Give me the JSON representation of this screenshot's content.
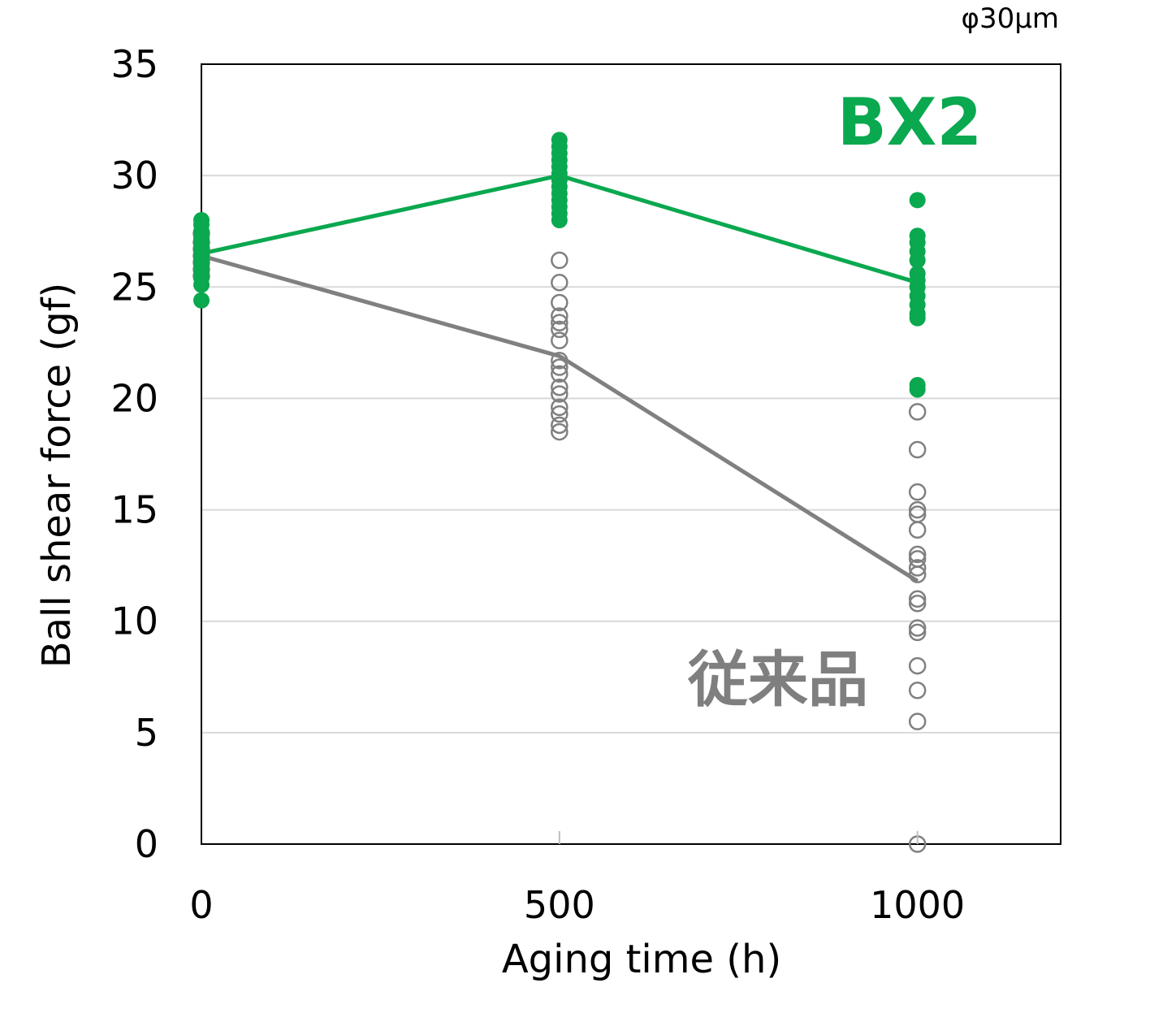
{
  "chart_data": {
    "type": "scatter",
    "note": "φ30μm",
    "xlabel": "Aging time (h)",
    "ylabel": "Ball shear force (gf)",
    "xlim": [
      0,
      1200
    ],
    "ylim": [
      0,
      35
    ],
    "x_ticks": [
      0,
      500,
      1000
    ],
    "y_ticks": [
      0,
      5,
      10,
      15,
      20,
      25,
      30,
      35
    ],
    "grid": "horizontal",
    "series": [
      {
        "name": "BX2",
        "color": "#0aa84f",
        "marker": "filled-circle",
        "mean": [
          [
            0,
            26.5
          ],
          [
            500,
            30.0
          ],
          [
            1000,
            25.2
          ]
        ],
        "points": [
          [
            0,
            28.0
          ],
          [
            0,
            27.8
          ],
          [
            0,
            27.5
          ],
          [
            0,
            27.2
          ],
          [
            0,
            27.0
          ],
          [
            0,
            26.8
          ],
          [
            0,
            26.6
          ],
          [
            0,
            26.4
          ],
          [
            0,
            26.2
          ],
          [
            0,
            26.0
          ],
          [
            0,
            25.7
          ],
          [
            0,
            25.4
          ],
          [
            0,
            25.1
          ],
          [
            0,
            24.4
          ],
          [
            500,
            31.6
          ],
          [
            500,
            31.3
          ],
          [
            500,
            31.0
          ],
          [
            500,
            30.7
          ],
          [
            500,
            30.4
          ],
          [
            500,
            30.1
          ],
          [
            500,
            29.8
          ],
          [
            500,
            29.5
          ],
          [
            500,
            29.2
          ],
          [
            500,
            28.9
          ],
          [
            500,
            28.6
          ],
          [
            500,
            28.3
          ],
          [
            500,
            28.0
          ],
          [
            1000,
            28.9
          ],
          [
            1000,
            27.3
          ],
          [
            1000,
            27.0
          ],
          [
            1000,
            26.6
          ],
          [
            1000,
            26.2
          ],
          [
            1000,
            25.6
          ],
          [
            1000,
            25.3
          ],
          [
            1000,
            25.0
          ],
          [
            1000,
            24.6
          ],
          [
            1000,
            24.2
          ],
          [
            1000,
            23.8
          ],
          [
            1000,
            23.6
          ],
          [
            1000,
            20.6
          ],
          [
            1000,
            20.4
          ]
        ]
      },
      {
        "name": "従来品",
        "color": "#808080",
        "marker": "open-circle",
        "mean": [
          [
            0,
            26.4
          ],
          [
            500,
            21.9
          ],
          [
            1000,
            11.8
          ]
        ],
        "points": [
          [
            0,
            27.4
          ],
          [
            0,
            27.0
          ],
          [
            0,
            26.7
          ],
          [
            0,
            26.4
          ],
          [
            0,
            26.1
          ],
          [
            0,
            25.8
          ],
          [
            0,
            25.5
          ],
          [
            500,
            26.2
          ],
          [
            500,
            25.2
          ],
          [
            500,
            24.3
          ],
          [
            500,
            23.7
          ],
          [
            500,
            23.4
          ],
          [
            500,
            23.1
          ],
          [
            500,
            22.6
          ],
          [
            500,
            21.7
          ],
          [
            500,
            21.4
          ],
          [
            500,
            21.1
          ],
          [
            500,
            20.5
          ],
          [
            500,
            20.2
          ],
          [
            500,
            19.6
          ],
          [
            500,
            19.3
          ],
          [
            500,
            18.8
          ],
          [
            500,
            18.5
          ],
          [
            1000,
            19.4
          ],
          [
            1000,
            17.7
          ],
          [
            1000,
            15.8
          ],
          [
            1000,
            15.0
          ],
          [
            1000,
            14.8
          ],
          [
            1000,
            14.1
          ],
          [
            1000,
            13.0
          ],
          [
            1000,
            12.8
          ],
          [
            1000,
            12.4
          ],
          [
            1000,
            12.1
          ],
          [
            1000,
            11.0
          ],
          [
            1000,
            10.8
          ],
          [
            1000,
            9.7
          ],
          [
            1000,
            9.5
          ],
          [
            1000,
            8.0
          ],
          [
            1000,
            6.9
          ],
          [
            1000,
            5.5
          ],
          [
            1000,
            0.0
          ]
        ]
      }
    ]
  }
}
